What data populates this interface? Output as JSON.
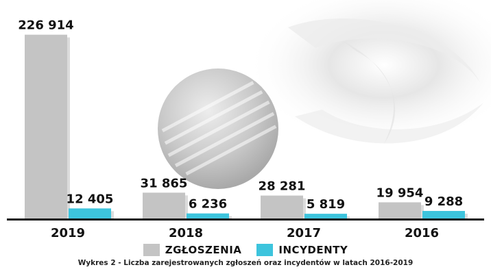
{
  "chart_data": {
    "type": "bar",
    "categories": [
      "2019",
      "2018",
      "2017",
      "2016"
    ],
    "series": [
      {
        "name": "ZGŁOSZENIA",
        "values": [
          226914,
          31865,
          28281,
          19954
        ],
        "labels": [
          "226 914",
          "31 865",
          "28 281",
          "19 954"
        ],
        "color": "#c4c4c4"
      },
      {
        "name": "INCYDENTY",
        "values": [
          12405,
          6236,
          5819,
          9288
        ],
        "labels": [
          "12 405",
          "6 236",
          "5 819",
          "9 288"
        ],
        "color": "#3dc4dd"
      }
    ],
    "ylim": [
      0,
      230000
    ],
    "grid": false,
    "legend_position": "bottom"
  },
  "caption": "Wykres 2 - Liczba zarejestrowanych zgłoszeń oraz incydentów w latach 2016-2019",
  "colors": {
    "axis": "#111111",
    "shadow": "#9a9a9a"
  }
}
